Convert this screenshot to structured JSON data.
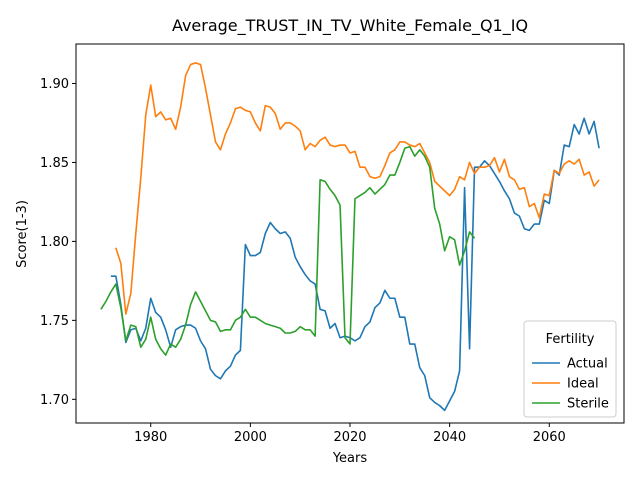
{
  "chart_data": {
    "type": "line",
    "title": "Average_TRUST_IN_TV_White_Female_Q1_IQ",
    "xlabel": "Years",
    "ylabel": "Score(1-3)",
    "xlim": [
      1965,
      2075
    ],
    "ylim": [
      1.685,
      1.925
    ],
    "xticks": [
      1980,
      2000,
      2020,
      2040,
      2060
    ],
    "yticks": [
      1.7,
      1.75,
      1.8,
      1.85,
      1.9
    ],
    "grid": false,
    "legend": {
      "title": "Fertility",
      "placement": "lower-right"
    },
    "series": [
      {
        "name": "Actual",
        "color": "#1f77b4",
        "points": [
          [
            1972,
            1.778
          ],
          [
            1973,
            1.778
          ],
          [
            1974,
            1.76
          ],
          [
            1975,
            1.736
          ],
          [
            1976,
            1.744
          ],
          [
            1977,
            1.745
          ],
          [
            1978,
            1.737
          ],
          [
            1979,
            1.745
          ],
          [
            1980,
            1.764
          ],
          [
            1981,
            1.755
          ],
          [
            1982,
            1.752
          ],
          [
            1983,
            1.744
          ],
          [
            1984,
            1.733
          ],
          [
            1985,
            1.744
          ],
          [
            1986,
            1.746
          ],
          [
            1987,
            1.747
          ],
          [
            1988,
            1.747
          ],
          [
            1989,
            1.745
          ],
          [
            1990,
            1.737
          ],
          [
            1991,
            1.732
          ],
          [
            1992,
            1.719
          ],
          [
            1993,
            1.715
          ],
          [
            1994,
            1.713
          ],
          [
            1995,
            1.718
          ],
          [
            1996,
            1.721
          ],
          [
            1997,
            1.728
          ],
          [
            1998,
            1.731
          ],
          [
            1999,
            1.798
          ],
          [
            2000,
            1.791
          ],
          [
            2001,
            1.791
          ],
          [
            2002,
            1.793
          ],
          [
            2003,
            1.805
          ],
          [
            2004,
            1.812
          ],
          [
            2005,
            1.808
          ],
          [
            2006,
            1.805
          ],
          [
            2007,
            1.806
          ],
          [
            2008,
            1.802
          ],
          [
            2009,
            1.79
          ],
          [
            2010,
            1.784
          ],
          [
            2011,
            1.779
          ],
          [
            2012,
            1.775
          ],
          [
            2013,
            1.773
          ],
          [
            2014,
            1.757
          ],
          [
            2015,
            1.756
          ],
          [
            2016,
            1.745
          ],
          [
            2017,
            1.748
          ],
          [
            2018,
            1.739
          ],
          [
            2019,
            1.74
          ],
          [
            2020,
            1.739
          ],
          [
            2021,
            1.737
          ],
          [
            2022,
            1.739
          ],
          [
            2023,
            1.746
          ],
          [
            2024,
            1.749
          ],
          [
            2025,
            1.758
          ],
          [
            2026,
            1.761
          ],
          [
            2027,
            1.769
          ],
          [
            2028,
            1.764
          ],
          [
            2029,
            1.764
          ],
          [
            2030,
            1.752
          ],
          [
            2031,
            1.752
          ],
          [
            2032,
            1.735
          ],
          [
            2033,
            1.735
          ],
          [
            2034,
            1.72
          ],
          [
            2035,
            1.715
          ],
          [
            2036,
            1.701
          ],
          [
            2037,
            1.698
          ],
          [
            2038,
            1.696
          ],
          [
            2039,
            1.693
          ],
          [
            2040,
            1.699
          ],
          [
            2041,
            1.705
          ],
          [
            2042,
            1.718
          ],
          [
            2043,
            1.834
          ],
          [
            2044,
            1.732
          ],
          [
            2045,
            1.847
          ],
          [
            2046,
            1.847
          ],
          [
            2047,
            1.851
          ],
          [
            2048,
            1.848
          ],
          [
            2049,
            1.843
          ],
          [
            2050,
            1.838
          ],
          [
            2051,
            1.832
          ],
          [
            2052,
            1.827
          ],
          [
            2053,
            1.818
          ],
          [
            2054,
            1.816
          ],
          [
            2055,
            1.808
          ],
          [
            2056,
            1.807
          ],
          [
            2057,
            1.811
          ],
          [
            2058,
            1.811
          ],
          [
            2059,
            1.826
          ],
          [
            2060,
            1.824
          ],
          [
            2061,
            1.845
          ],
          [
            2062,
            1.842
          ],
          [
            2063,
            1.861
          ],
          [
            2064,
            1.86
          ],
          [
            2065,
            1.874
          ],
          [
            2066,
            1.868
          ],
          [
            2067,
            1.878
          ],
          [
            2068,
            1.868
          ],
          [
            2069,
            1.876
          ],
          [
            2070,
            1.859
          ]
        ]
      },
      {
        "name": "Ideal",
        "color": "#ff7f0e",
        "points": [
          [
            1973,
            1.796
          ],
          [
            1974,
            1.786
          ],
          [
            1975,
            1.754
          ],
          [
            1976,
            1.767
          ],
          [
            1977,
            1.805
          ],
          [
            1978,
            1.84
          ],
          [
            1979,
            1.88
          ],
          [
            1980,
            1.899
          ],
          [
            1981,
            1.879
          ],
          [
            1982,
            1.882
          ],
          [
            1983,
            1.877
          ],
          [
            1984,
            1.878
          ],
          [
            1985,
            1.871
          ],
          [
            1986,
            1.885
          ],
          [
            1987,
            1.905
          ],
          [
            1988,
            1.912
          ],
          [
            1989,
            1.913
          ],
          [
            1990,
            1.912
          ],
          [
            1991,
            1.897
          ],
          [
            1992,
            1.88
          ],
          [
            1993,
            1.863
          ],
          [
            1994,
            1.858
          ],
          [
            1995,
            1.868
          ],
          [
            1996,
            1.875
          ],
          [
            1997,
            1.884
          ],
          [
            1998,
            1.885
          ],
          [
            1999,
            1.883
          ],
          [
            2000,
            1.882
          ],
          [
            2001,
            1.875
          ],
          [
            2002,
            1.87
          ],
          [
            2003,
            1.886
          ],
          [
            2004,
            1.885
          ],
          [
            2005,
            1.881
          ],
          [
            2006,
            1.871
          ],
          [
            2007,
            1.875
          ],
          [
            2008,
            1.875
          ],
          [
            2009,
            1.873
          ],
          [
            2010,
            1.87
          ],
          [
            2011,
            1.858
          ],
          [
            2012,
            1.862
          ],
          [
            2013,
            1.86
          ],
          [
            2014,
            1.864
          ],
          [
            2015,
            1.866
          ],
          [
            2016,
            1.861
          ],
          [
            2017,
            1.86
          ],
          [
            2018,
            1.861
          ],
          [
            2019,
            1.861
          ],
          [
            2020,
            1.856
          ],
          [
            2021,
            1.857
          ],
          [
            2022,
            1.847
          ],
          [
            2023,
            1.847
          ],
          [
            2024,
            1.841
          ],
          [
            2025,
            1.84
          ],
          [
            2026,
            1.841
          ],
          [
            2027,
            1.848
          ],
          [
            2028,
            1.856
          ],
          [
            2029,
            1.858
          ],
          [
            2030,
            1.863
          ],
          [
            2031,
            1.863
          ],
          [
            2032,
            1.861
          ],
          [
            2033,
            1.86
          ],
          [
            2034,
            1.862
          ],
          [
            2035,
            1.856
          ],
          [
            2036,
            1.85
          ],
          [
            2037,
            1.838
          ],
          [
            2038,
            1.835
          ],
          [
            2039,
            1.832
          ],
          [
            2040,
            1.829
          ],
          [
            2041,
            1.833
          ],
          [
            2042,
            1.841
          ],
          [
            2043,
            1.839
          ],
          [
            2044,
            1.85
          ],
          [
            2045,
            1.843
          ],
          [
            2046,
            1.847
          ],
          [
            2047,
            1.847
          ],
          [
            2048,
            1.848
          ],
          [
            2049,
            1.853
          ],
          [
            2050,
            1.844
          ],
          [
            2051,
            1.852
          ],
          [
            2052,
            1.841
          ],
          [
            2053,
            1.839
          ],
          [
            2054,
            1.833
          ],
          [
            2055,
            1.834
          ],
          [
            2056,
            1.822
          ],
          [
            2057,
            1.824
          ],
          [
            2058,
            1.815
          ],
          [
            2059,
            1.83
          ],
          [
            2060,
            1.829
          ],
          [
            2061,
            1.845
          ],
          [
            2062,
            1.843
          ],
          [
            2063,
            1.849
          ],
          [
            2064,
            1.851
          ],
          [
            2065,
            1.849
          ],
          [
            2066,
            1.852
          ],
          [
            2067,
            1.842
          ],
          [
            2068,
            1.844
          ],
          [
            2069,
            1.835
          ],
          [
            2070,
            1.839
          ]
        ]
      },
      {
        "name": "Sterile",
        "color": "#2ca02c",
        "points": [
          [
            1970,
            1.757
          ],
          [
            1971,
            1.762
          ],
          [
            1972,
            1.768
          ],
          [
            1973,
            1.773
          ],
          [
            1974,
            1.758
          ],
          [
            1975,
            1.737
          ],
          [
            1976,
            1.747
          ],
          [
            1977,
            1.746
          ],
          [
            1978,
            1.733
          ],
          [
            1979,
            1.738
          ],
          [
            1980,
            1.752
          ],
          [
            1981,
            1.738
          ],
          [
            1982,
            1.732
          ],
          [
            1983,
            1.728
          ],
          [
            1984,
            1.735
          ],
          [
            1985,
            1.733
          ],
          [
            1986,
            1.738
          ],
          [
            1987,
            1.747
          ],
          [
            1988,
            1.76
          ],
          [
            1989,
            1.768
          ],
          [
            1990,
            1.762
          ],
          [
            1991,
            1.756
          ],
          [
            1992,
            1.75
          ],
          [
            1993,
            1.749
          ],
          [
            1994,
            1.743
          ],
          [
            1995,
            1.744
          ],
          [
            1996,
            1.744
          ],
          [
            1997,
            1.75
          ],
          [
            1998,
            1.752
          ],
          [
            1999,
            1.757
          ],
          [
            2000,
            1.752
          ],
          [
            2001,
            1.752
          ],
          [
            2002,
            1.75
          ],
          [
            2003,
            1.748
          ],
          [
            2004,
            1.747
          ],
          [
            2005,
            1.746
          ],
          [
            2006,
            1.745
          ],
          [
            2007,
            1.742
          ],
          [
            2008,
            1.742
          ],
          [
            2009,
            1.743
          ],
          [
            2010,
            1.746
          ],
          [
            2011,
            1.744
          ],
          [
            2012,
            1.744
          ],
          [
            2013,
            1.74
          ],
          [
            2014,
            1.839
          ],
          [
            2015,
            1.838
          ],
          [
            2016,
            1.833
          ],
          [
            2017,
            1.829
          ],
          [
            2018,
            1.823
          ],
          [
            2019,
            1.739
          ],
          [
            2020,
            1.735
          ],
          [
            2021,
            1.827
          ],
          [
            2022,
            1.829
          ],
          [
            2023,
            1.831
          ],
          [
            2024,
            1.834
          ],
          [
            2025,
            1.83
          ],
          [
            2026,
            1.833
          ],
          [
            2027,
            1.836
          ],
          [
            2028,
            1.842
          ],
          [
            2029,
            1.842
          ],
          [
            2030,
            1.85
          ],
          [
            2031,
            1.859
          ],
          [
            2032,
            1.86
          ],
          [
            2033,
            1.854
          ],
          [
            2034,
            1.858
          ],
          [
            2035,
            1.854
          ],
          [
            2036,
            1.847
          ],
          [
            2037,
            1.821
          ],
          [
            2038,
            1.811
          ],
          [
            2039,
            1.794
          ],
          [
            2040,
            1.803
          ],
          [
            2041,
            1.801
          ],
          [
            2042,
            1.785
          ],
          [
            2043,
            1.794
          ],
          [
            2044,
            1.806
          ],
          [
            2045,
            1.802
          ]
        ]
      }
    ]
  }
}
